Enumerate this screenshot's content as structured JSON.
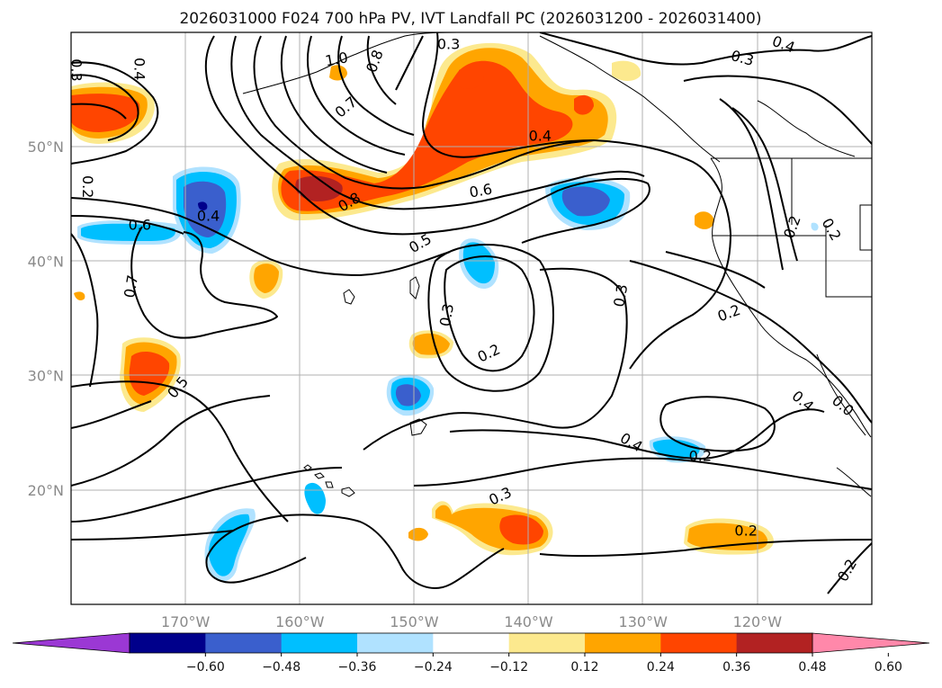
{
  "title": "2026031000 F024 700 hPa PV, IVT Landfall PC (2026031200 - 2026031400)",
  "lat_labels": [
    {
      "lat": 50,
      "text": "50°N"
    },
    {
      "lat": 40,
      "text": "40°N"
    },
    {
      "lat": 30,
      "text": "30°N"
    },
    {
      "lat": 20,
      "text": "20°N"
    }
  ],
  "lon_labels": [
    {
      "lon": -170,
      "text": "170°W"
    },
    {
      "lon": -160,
      "text": "160°W"
    },
    {
      "lon": -150,
      "text": "150°W"
    },
    {
      "lon": -140,
      "text": "140°W"
    },
    {
      "lon": -130,
      "text": "130°W"
    },
    {
      "lon": -120,
      "text": "120°W"
    }
  ],
  "extent": {
    "lon_min": -180,
    "lon_max": -110,
    "lat_min": 10,
    "lat_max": 60
  },
  "colorbar": {
    "colors": [
      "#9b38d4",
      "#00008b",
      "#3a5fcd",
      "#00bfff",
      "#b0e2ff",
      "#ffffff",
      "#fce98e",
      "#ffa500",
      "#ff4500",
      "#b22222",
      "#ff88aa"
    ],
    "ticks": [
      "−0.60",
      "−0.48",
      "−0.36",
      "−0.24",
      "−0.12",
      "0.12",
      "0.24",
      "0.36",
      "0.48",
      "0.60"
    ]
  },
  "contour_labels": [
    {
      "lon": -179.5,
      "lat": 56.7,
      "text": "0.3",
      "rot": 90
    },
    {
      "lon": -174.0,
      "lat": 56.8,
      "text": "0.4",
      "rot": 90
    },
    {
      "lon": -156.8,
      "lat": 57.7,
      "text": "1.0",
      "rot": -10
    },
    {
      "lon": -153.5,
      "lat": 57.5,
      "text": "0.8",
      "rot": -70
    },
    {
      "lon": -147.0,
      "lat": 59.0,
      "text": "0.3",
      "rot": 0
    },
    {
      "lon": -117.7,
      "lat": 59.0,
      "text": "0.4",
      "rot": 20
    },
    {
      "lon": -121.3,
      "lat": 57.8,
      "text": "0.3",
      "rot": 15
    },
    {
      "lon": -156.0,
      "lat": 53.5,
      "text": "0.7",
      "rot": -40
    },
    {
      "lon": -139.0,
      "lat": 51.0,
      "text": "0.4",
      "rot": 0
    },
    {
      "lon": -174.0,
      "lat": 43.2,
      "text": "0.6",
      "rot": 0
    },
    {
      "lon": -168.0,
      "lat": 44.0,
      "text": "0.4",
      "rot": 0
    },
    {
      "lon": -155.7,
      "lat": 45.2,
      "text": "0.8",
      "rot": -30
    },
    {
      "lon": -144.2,
      "lat": 46.2,
      "text": "0.6",
      "rot": -10
    },
    {
      "lon": -149.5,
      "lat": 41.6,
      "text": "0.5",
      "rot": -30
    },
    {
      "lon": -174.8,
      "lat": 37.8,
      "text": "0.7",
      "rot": -80
    },
    {
      "lon": -147.2,
      "lat": 35.3,
      "text": "0.3",
      "rot": -80
    },
    {
      "lon": -132.0,
      "lat": 37.0,
      "text": "0.3",
      "rot": -80
    },
    {
      "lon": -143.5,
      "lat": 32.0,
      "text": "0.2",
      "rot": -25
    },
    {
      "lon": -122.5,
      "lat": 35.5,
      "text": "0.2",
      "rot": -20
    },
    {
      "lon": -113.5,
      "lat": 42.8,
      "text": "0.2",
      "rot": 60
    },
    {
      "lon": -117.0,
      "lat": 43.0,
      "text": "0.2",
      "rot": -70
    },
    {
      "lon": -178.5,
      "lat": 46.5,
      "text": "0.2",
      "rot": 90
    },
    {
      "lon": -170.7,
      "lat": 29.0,
      "text": "0.5",
      "rot": -50
    },
    {
      "lon": -116.0,
      "lat": 27.8,
      "text": "0.4",
      "rot": 40
    },
    {
      "lon": -112.5,
      "lat": 27.4,
      "text": "0.0",
      "rot": 40
    },
    {
      "lon": -131.0,
      "lat": 24.2,
      "text": "0.4",
      "rot": 30
    },
    {
      "lon": -125.0,
      "lat": 23.0,
      "text": "0.2",
      "rot": 0
    },
    {
      "lon": -142.5,
      "lat": 19.5,
      "text": "0.3",
      "rot": -25
    },
    {
      "lon": -121.0,
      "lat": 16.5,
      "text": "0.2",
      "rot": 0
    },
    {
      "lon": -112.2,
      "lat": 13.0,
      "text": "0.2",
      "rot": -60
    }
  ]
}
